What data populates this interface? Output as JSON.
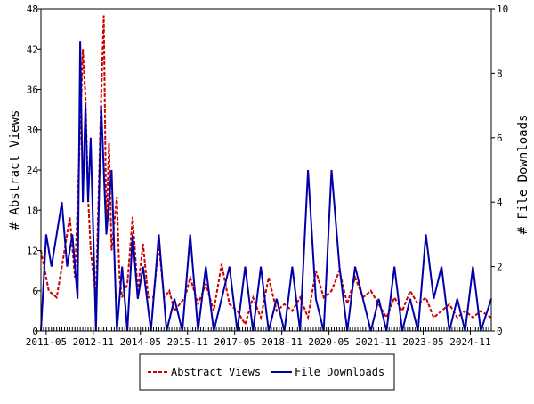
{
  "chart_data": {
    "type": "line",
    "title": "",
    "y_left_label": "# Abstract Views",
    "y_right_label": "# File Downloads",
    "y_left_lim": [
      0,
      48
    ],
    "y_right_lim": [
      0,
      10
    ],
    "y_left_ticks": [
      0,
      6,
      12,
      18,
      24,
      30,
      36,
      42,
      48
    ],
    "y_right_ticks": [
      0,
      2,
      4,
      6,
      8,
      10
    ],
    "x_range": [
      "2011-03",
      "2025-07"
    ],
    "x_tick_labels": [
      "2011-05",
      "2012-11",
      "2014-05",
      "2015-11",
      "2017-05",
      "2018-11",
      "2020-05",
      "2021-11",
      "2023-05",
      "2024-11"
    ],
    "legend_position": "bottom",
    "grid": false,
    "series": [
      {
        "name": "Abstract Views",
        "axis": "left",
        "color": "#cc0000",
        "style": "dashed",
        "x": [
          "2011-03",
          "2011-06",
          "2011-09",
          "2011-12",
          "2012-02",
          "2012-04",
          "2012-06",
          "2012-07",
          "2012-08",
          "2012-09",
          "2012-10",
          "2012-12",
          "2013-02",
          "2013-03",
          "2013-04",
          "2013-05",
          "2013-06",
          "2013-08",
          "2013-09",
          "2013-10",
          "2013-12",
          "2014-02",
          "2014-04",
          "2014-06",
          "2014-08",
          "2014-10",
          "2014-12",
          "2015-02",
          "2015-04",
          "2015-06",
          "2015-08",
          "2015-10",
          "2015-12",
          "2016-03",
          "2016-06",
          "2016-09",
          "2016-12",
          "2017-03",
          "2017-06",
          "2017-09",
          "2017-12",
          "2018-03",
          "2018-06",
          "2018-09",
          "2018-12",
          "2019-03",
          "2019-06",
          "2019-09",
          "2019-12",
          "2020-03",
          "2020-06",
          "2020-09",
          "2020-12",
          "2021-03",
          "2021-06",
          "2021-09",
          "2021-12",
          "2022-03",
          "2022-06",
          "2022-09",
          "2022-12",
          "2023-03",
          "2023-06",
          "2023-09",
          "2023-12",
          "2024-03",
          "2024-06",
          "2024-09",
          "2024-12",
          "2025-03",
          "2025-07"
        ],
        "values": [
          12,
          6,
          5,
          12,
          17,
          8,
          30,
          42,
          35,
          20,
          12,
          5,
          35,
          47,
          15,
          28,
          12,
          20,
          8,
          5,
          7,
          17,
          6,
          13,
          5,
          5,
          13,
          5,
          6,
          3,
          4,
          5,
          8,
          4,
          7,
          3,
          10,
          4,
          3,
          1,
          5,
          2,
          8,
          3,
          4,
          3,
          5,
          2,
          9,
          5,
          6,
          9,
          4,
          8,
          5,
          6,
          4,
          2,
          5,
          3,
          6,
          4,
          5,
          2,
          3,
          4,
          2,
          3,
          2,
          3,
          2
        ]
      },
      {
        "name": "File Downloads",
        "axis": "right",
        "color": "#0000aa",
        "style": "solid",
        "x": [
          "2011-03",
          "2011-05",
          "2011-07",
          "2011-09",
          "2011-11",
          "2012-01",
          "2012-03",
          "2012-05",
          "2012-06",
          "2012-07",
          "2012-08",
          "2012-09",
          "2012-10",
          "2012-12",
          "2013-02",
          "2013-04",
          "2013-06",
          "2013-08",
          "2013-10",
          "2013-12",
          "2014-02",
          "2014-04",
          "2014-06",
          "2014-09",
          "2014-12",
          "2015-03",
          "2015-06",
          "2015-09",
          "2015-12",
          "2016-03",
          "2016-06",
          "2016-09",
          "2016-12",
          "2017-03",
          "2017-06",
          "2017-09",
          "2017-12",
          "2018-03",
          "2018-06",
          "2018-09",
          "2018-12",
          "2019-03",
          "2019-06",
          "2019-09",
          "2019-12",
          "2020-03",
          "2020-06",
          "2020-09",
          "2020-12",
          "2021-03",
          "2021-06",
          "2021-09",
          "2021-12",
          "2022-03",
          "2022-06",
          "2022-09",
          "2022-12",
          "2023-03",
          "2023-06",
          "2023-09",
          "2023-12",
          "2024-03",
          "2024-06",
          "2024-09",
          "2024-12",
          "2025-03",
          "2025-07"
        ],
        "values": [
          0,
          3,
          2,
          3,
          4,
          2,
          3,
          1,
          9,
          4,
          7,
          4,
          6,
          0,
          7,
          3,
          5,
          0,
          2,
          0,
          3,
          1,
          2,
          0,
          3,
          0,
          1,
          0,
          3,
          0,
          2,
          0,
          1,
          2,
          0,
          2,
          0,
          2,
          0,
          1,
          0,
          2,
          0,
          5,
          1,
          0,
          5,
          2,
          0,
          2,
          1,
          0,
          1,
          0,
          2,
          0,
          1,
          0,
          3,
          1,
          2,
          0,
          1,
          0,
          2,
          0,
          1
        ]
      }
    ]
  }
}
